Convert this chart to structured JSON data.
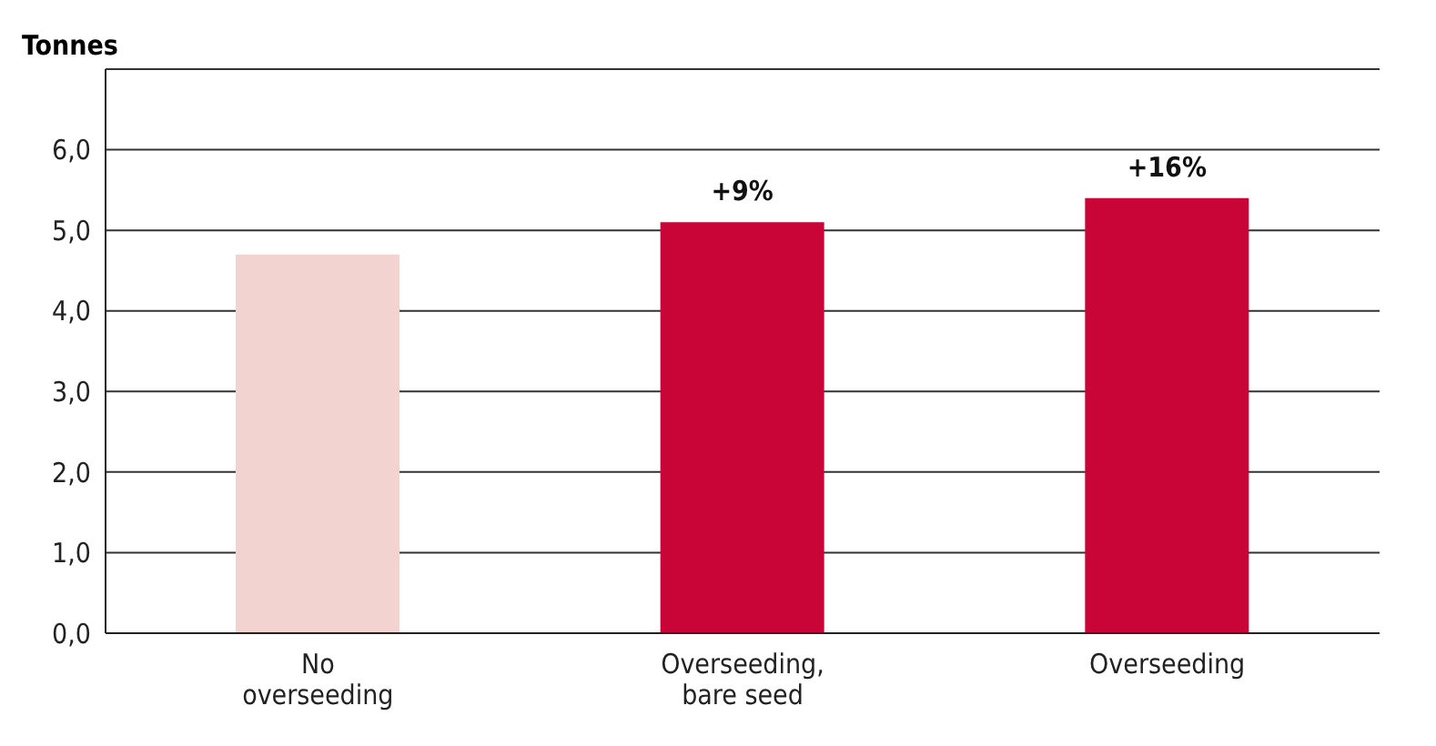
{
  "chart_data": {
    "type": "bar",
    "ylabel": "Tonnes",
    "categories": [
      "No overseeding",
      "Overseeding, bare seed",
      "Overseeding"
    ],
    "values": [
      4.7,
      5.1,
      5.4
    ],
    "colors": [
      "#f3d3d0",
      "#c80536",
      "#c80536"
    ],
    "ylim": [
      0,
      7
    ],
    "yticks": [
      {
        "value": 0,
        "label": "0,0"
      },
      {
        "value": 1,
        "label": "1,0"
      },
      {
        "value": 2,
        "label": "2,0"
      },
      {
        "value": 3,
        "label": "3,0"
      },
      {
        "value": 4,
        "label": "4,0"
      },
      {
        "value": 5,
        "label": "5,0"
      },
      {
        "value": 6,
        "label": "6,0"
      },
      {
        "value": 7,
        "label": null
      }
    ],
    "grid": "y",
    "annotations": [
      {
        "text": "+9%",
        "x": "Overseeding, bare seed",
        "y": 5.1
      },
      {
        "text": "+16%",
        "x": "Overseeding",
        "y": 5.4
      }
    ]
  }
}
